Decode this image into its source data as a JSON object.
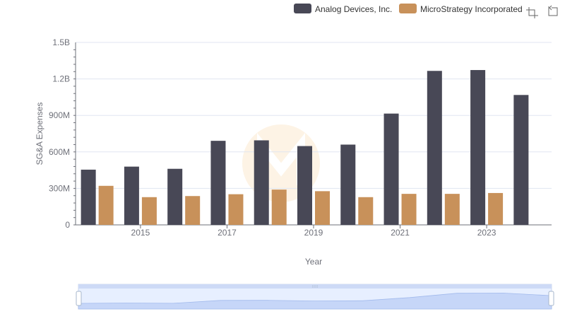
{
  "chart_data": {
    "type": "bar",
    "title": "",
    "xlabel": "Year",
    "ylabel": "SG&A Expenses",
    "categories": [
      "2014",
      "2015",
      "2016",
      "2017",
      "2018",
      "2019",
      "2020",
      "2021",
      "2022",
      "2023",
      "2024"
    ],
    "x_tick_labels": [
      "2015",
      "2017",
      "2019",
      "2021",
      "2023"
    ],
    "y_ticks": [
      0,
      300000000,
      600000000,
      900000000,
      1200000000,
      1500000000
    ],
    "y_tick_labels": [
      "0",
      "300M",
      "600M",
      "900M",
      "1.2B",
      "1.5B"
    ],
    "ylim": [
      0,
      1500000000
    ],
    "grid": true,
    "legend_position": "top-right",
    "series": [
      {
        "name": "Analog Devices, Inc.",
        "color": "#484856",
        "values": [
          454000000,
          479000000,
          461000000,
          691000000,
          695000000,
          648000000,
          660000000,
          915000000,
          1266000000,
          1273000000,
          1068000000
        ]
      },
      {
        "name": "MicroStrategy Incorporated",
        "color": "#c8915a",
        "values": [
          321000000,
          228000000,
          237000000,
          252000000,
          290000000,
          277000000,
          228000000,
          255000000,
          255000000,
          262000000,
          null
        ]
      }
    ]
  },
  "toolbox": {
    "zoom_icon": "zoom-select-icon",
    "reset_icon": "zoom-reset-icon"
  },
  "slider": {
    "handle_icon": "slider-handle-icon"
  }
}
